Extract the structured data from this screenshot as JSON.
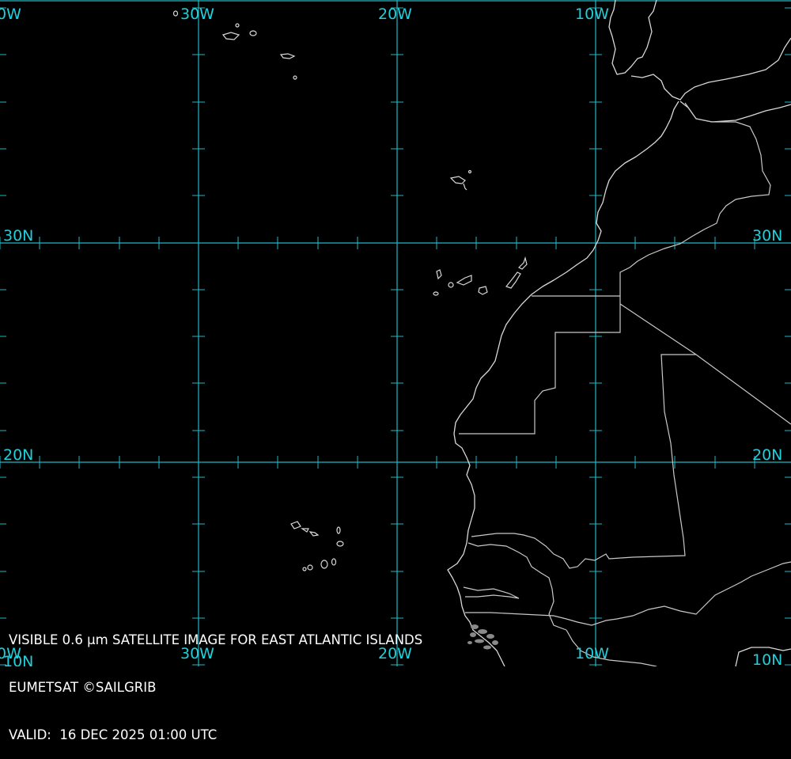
{
  "map": {
    "lon_labels_top": [
      "0W",
      "30W",
      "20W",
      "10W"
    ],
    "lon_labels_bottom": [
      "0W",
      "30W",
      "20W",
      "10W"
    ],
    "lat_labels_left": [
      "30N",
      "20N",
      "10N"
    ],
    "lat_labels_right": [
      "30N",
      "20N",
      "10N"
    ],
    "colors": {
      "graticule": "#1fb8c4",
      "coastline": "#d8d8d8",
      "background": "#000000",
      "caption": "#ffffff"
    }
  },
  "caption": {
    "line1": "VISIBLE 0.6 µm SATELLITE IMAGE FOR EAST ATLANTIC ISLANDS",
    "line2": "EUMETSAT ©SAILGRIB",
    "line3": "VALID:  16 DEC 2025 01:00 UTC"
  }
}
